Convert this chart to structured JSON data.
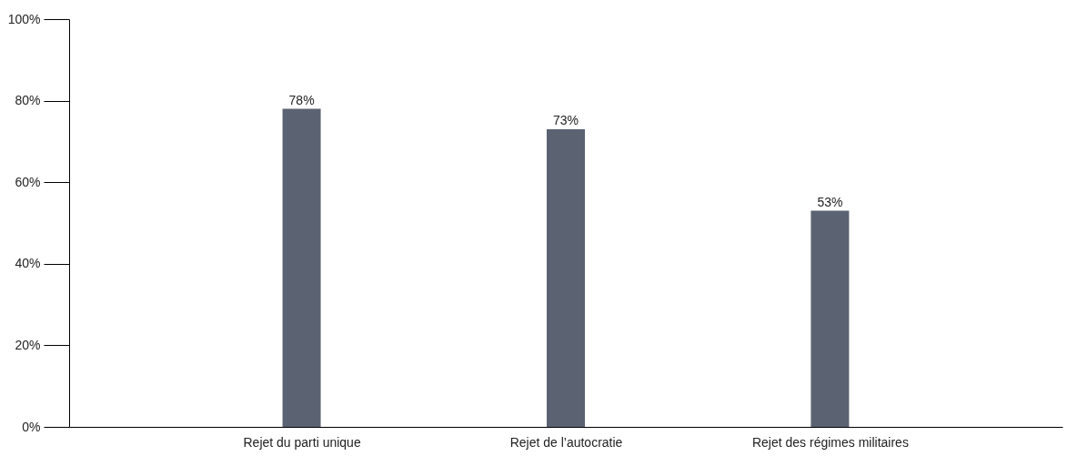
{
  "chart_data": {
    "type": "bar",
    "categories": [
      "Rejet du parti unique",
      "Rejet de l’autocratie",
      "Rejet des régimes militaires"
    ],
    "values": [
      78,
      73,
      53
    ],
    "color": "#5b6272",
    "data_labels": true,
    "value_labels": [
      "78%",
      "73%",
      "53%"
    ],
    "ylim": [
      0,
      100
    ],
    "yticks": [
      {
        "value": 0,
        "label": "0%"
      },
      {
        "value": 20,
        "label": "20%"
      },
      {
        "value": 40,
        "label": "40%"
      },
      {
        "value": 60,
        "label": "60%"
      },
      {
        "value": 80,
        "label": "80%"
      },
      {
        "value": 100,
        "label": "100%"
      }
    ],
    "grid": false
  }
}
